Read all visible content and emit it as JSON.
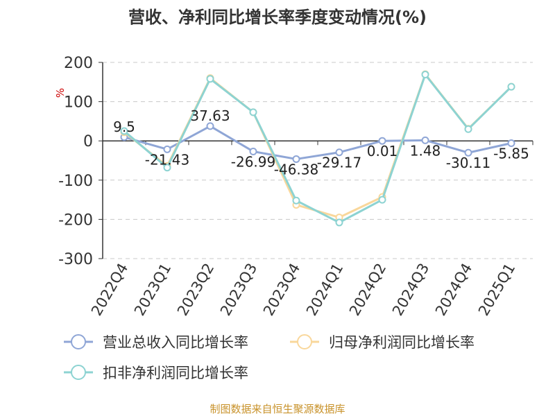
{
  "chart_data": {
    "type": "line",
    "title": "营收、净利同比增长率季度变动情况(%)",
    "ylabel": "%",
    "ylim": [
      -300,
      200
    ],
    "yticks": [
      200,
      100,
      0,
      -100,
      -200,
      -300
    ],
    "categories": [
      "2022Q4",
      "2023Q1",
      "2023Q2",
      "2023Q3",
      "2023Q4",
      "2024Q1",
      "2024Q2",
      "2024Q3",
      "2024Q4",
      "2025Q1"
    ],
    "grid": true,
    "legend_position": "bottom",
    "series": [
      {
        "name": "营业总收入同比增长率",
        "color": "#8fa6d6",
        "values": [
          9.5,
          -21.43,
          37.63,
          -26.99,
          -46.38,
          -29.17,
          0.01,
          1.48,
          -30.11,
          -5.85
        ],
        "labels": [
          "9.5",
          "-21.43",
          "37.63",
          "-26.99",
          "-46.38",
          "-29.17",
          "0.01",
          "1.48",
          "-30.11",
          "-5.85"
        ]
      },
      {
        "name": "归母净利润同比增长率",
        "color": "#f9d79b",
        "values": [
          22,
          -64,
          160,
          73,
          -163,
          -195,
          -143,
          170,
          31,
          138
        ]
      },
      {
        "name": "扣非净利润同比增长率",
        "color": "#8dd3d2",
        "values": [
          25,
          -68,
          158,
          73,
          -152,
          -208,
          -150,
          169,
          30,
          138
        ]
      }
    ],
    "source": "制图数据来自恒生聚源数据库"
  }
}
